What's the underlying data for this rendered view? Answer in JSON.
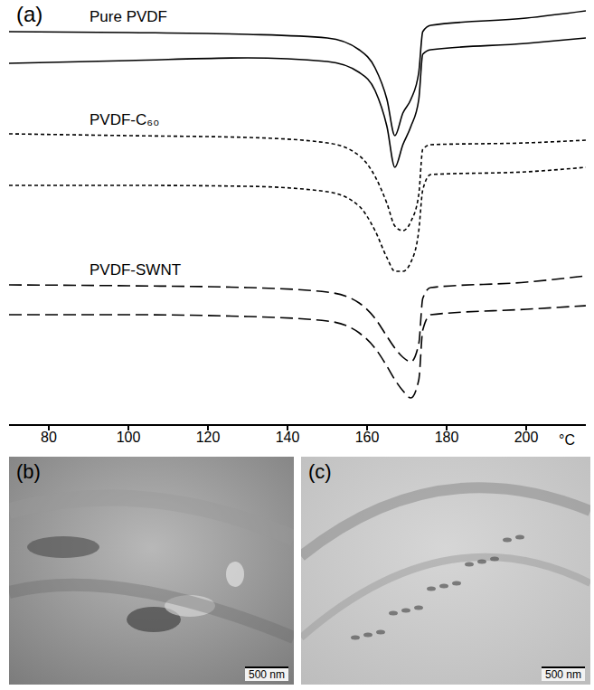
{
  "chart_data": {
    "type": "line",
    "annotations": [
      "(a)"
    ],
    "x_label": "°C",
    "x": [
      70,
      100,
      130,
      150,
      158,
      162,
      165,
      167,
      169,
      171,
      173,
      174,
      176,
      200,
      215
    ],
    "xlim": [
      70,
      215
    ],
    "xticks": [
      80,
      100,
      120,
      140,
      160,
      180,
      200
    ],
    "ylim": [
      0,
      470
    ],
    "yticks": [],
    "tick_labels": "x",
    "grid": false,
    "series": [
      {
        "name": "Pure PVDF",
        "color": "#000000",
        "line_style": "solid",
        "curves": [
          [
            435,
            434,
            432,
            428,
            415,
            395,
            360,
            320,
            345,
            360,
            390,
            435,
            442,
            450,
            458
          ],
          [
            400,
            403,
            406,
            402,
            390,
            370,
            330,
            285,
            310,
            330,
            360,
            410,
            415,
            422,
            428
          ]
        ]
      },
      {
        "name": "PVDF-C₆₀",
        "color": "#000000",
        "line_style": "dashed",
        "curves": [
          [
            322,
            320,
            318,
            312,
            298,
            275,
            245,
            220,
            215,
            225,
            255,
            305,
            310,
            312,
            315
          ],
          [
            265,
            265,
            264,
            258,
            242,
            215,
            185,
            170,
            170,
            180,
            215,
            260,
            277,
            280,
            285
          ]
        ]
      },
      {
        "name": "PVDF-SWNT",
        "color": "#000000",
        "line_style": "long_dashed",
        "curves": [
          [
            155,
            154,
            152,
            147,
            135,
            118,
            98,
            85,
            75,
            70,
            90,
            140,
            152,
            158,
            165
          ],
          [
            122,
            122,
            120,
            115,
            102,
            85,
            65,
            50,
            38,
            30,
            50,
            105,
            122,
            128,
            132
          ]
        ]
      }
    ]
  },
  "images": [
    {
      "label": "(b)",
      "scale_bar": "500 nm"
    },
    {
      "label": "(c)",
      "scale_bar": "500 nm"
    }
  ]
}
